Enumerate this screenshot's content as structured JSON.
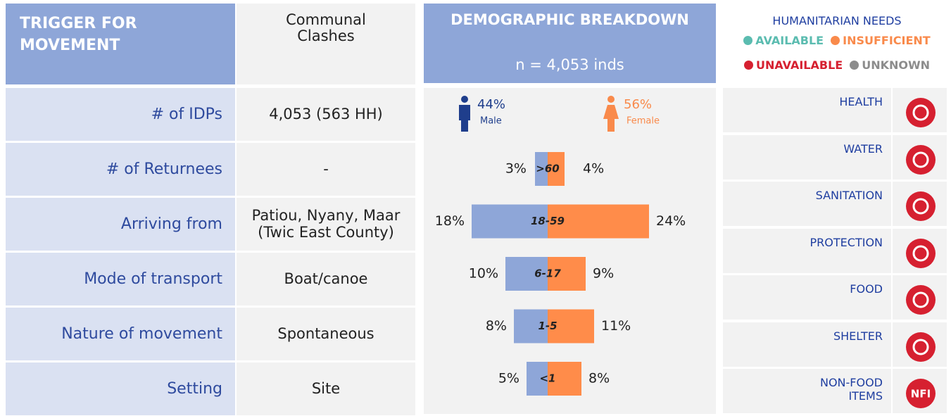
{
  "trigger": {
    "label": "TRIGGER FOR MOVEMENT",
    "value": "Communal Clashes"
  },
  "rows": [
    {
      "label": "# of IDPs",
      "value": "4,053 (563 HH)"
    },
    {
      "label": "# of Returnees",
      "value": "-"
    },
    {
      "label": "Arriving from",
      "value": "Patiou, Nyany, Maar (Twic East County)"
    },
    {
      "label": "Mode of transport",
      "value": "Boat/canoe"
    },
    {
      "label": "Nature of movement",
      "value": "Spontaneous"
    },
    {
      "label": "Setting",
      "value": "Site"
    }
  ],
  "demographics": {
    "title": "DEMOGRAPHIC BREAKDOWN",
    "subtitle": "n = 4,053 inds",
    "male": {
      "value": 44,
      "value_label": "44%",
      "name": "Male",
      "color": "#1f3e8c",
      "bar_color": "#8ea6d8"
    },
    "female": {
      "value": 56,
      "value_label": "56%",
      "name": "Female",
      "color": "#f98a4b",
      "bar_color": "#ff8c4a"
    },
    "age_groups": [
      ">60",
      "18-59",
      "6-17",
      "1-5",
      "<1"
    ],
    "male_values": [
      3,
      18,
      10,
      8,
      5
    ],
    "male_labels": [
      "3%",
      "18%",
      "10%",
      "8%",
      "5%"
    ],
    "female_values": [
      4,
      24,
      9,
      11,
      8
    ],
    "female_labels": [
      "4%",
      "24%",
      "9%",
      "11%",
      "8%"
    ]
  },
  "needs": {
    "title": "HUMANITARIAN NEEDS",
    "legend": [
      {
        "name": "AVAILABLE",
        "color": "#5bbcb0"
      },
      {
        "name": "INSUFFICIENT",
        "color": "#f98a4b"
      },
      {
        "name": "UNAVAILABLE",
        "color": "#d62030"
      },
      {
        "name": "UNKNOWN",
        "color": "#8c8c8c"
      }
    ],
    "items": [
      {
        "name": "HEALTH",
        "color": "#d62030"
      },
      {
        "name": "WATER",
        "color": "#d62030"
      },
      {
        "name": "SANITATION",
        "color": "#d62030"
      },
      {
        "name": "PROTECTION",
        "color": "#d62030"
      },
      {
        "name": "FOOD",
        "color": "#d62030"
      },
      {
        "name": "SHELTER",
        "color": "#d62030"
      },
      {
        "name": "NON-FOOD ITEMS",
        "color": "#d62030",
        "icon_text": "NFI"
      }
    ]
  }
}
